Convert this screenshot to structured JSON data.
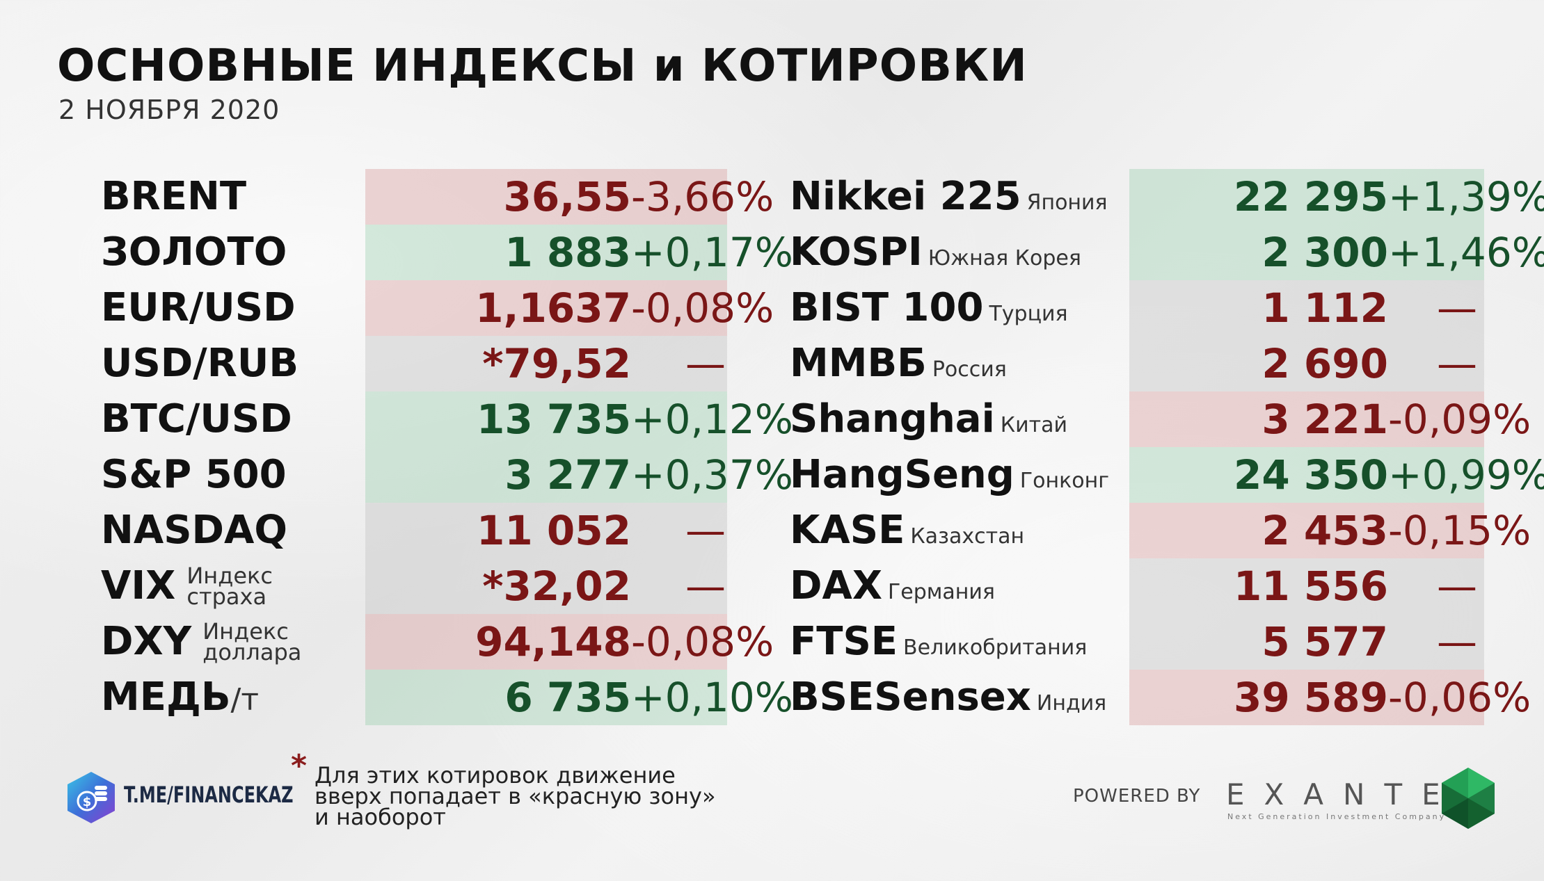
{
  "header": {
    "title": "ОСНОВНЫЕ ИНДЕКСЫ и КОТИРОВКИ",
    "date": "2 НОЯБРЯ 2020"
  },
  "colors": {
    "up_bg": "#cfe3d5",
    "down_bg": "#e6cfcf",
    "flat_bg": "#d6d6d6",
    "up_text": "#16502a",
    "down_text": "#7a1616"
  },
  "left_table": [
    {
      "name": "BRENT",
      "value": "36,55",
      "change": "-3,66%",
      "trend": "down"
    },
    {
      "name": "ЗОЛОТО",
      "value": "1 883",
      "change": "+0,17%",
      "trend": "up"
    },
    {
      "name": "EUR/USD",
      "value": "1,1637",
      "change": "-0,08%",
      "trend": "down"
    },
    {
      "name": "USD/RUB",
      "value": "*79,52",
      "change": "—",
      "trend": "flat"
    },
    {
      "name": "BTC/USD",
      "value": "13 735",
      "change": "+0,12%",
      "trend": "up"
    },
    {
      "name": "S&P 500",
      "value": "3 277",
      "change": "+0,37%",
      "trend": "up"
    },
    {
      "name": "NASDAQ",
      "value": "11 052",
      "change": "—",
      "trend": "flat"
    },
    {
      "name": "VIX",
      "sub1": "Индекс",
      "sub2": "страха",
      "value": "*32,02",
      "change": "—",
      "trend": "flat"
    },
    {
      "name": "DXY",
      "sub1": "Индекс",
      "sub2": "доллара",
      "value": "94,148",
      "change": "-0,08%",
      "trend": "down"
    },
    {
      "name": "МЕДЬ",
      "unit": "/т",
      "value": "6 735",
      "change": "+0,10%",
      "trend": "up"
    }
  ],
  "right_table": [
    {
      "name": "Nikkei 225",
      "country": "Япония",
      "value": "22 295",
      "change": "+1,39%",
      "trend": "up"
    },
    {
      "name": "KOSPI",
      "country": "Южная Корея",
      "value": "2 300",
      "change": "+1,46%",
      "trend": "up"
    },
    {
      "name": "BIST 100",
      "country": "Турция",
      "value": "1 112",
      "change": "—",
      "trend": "flat"
    },
    {
      "name": "ММВБ",
      "country": "Россия",
      "value": "2 690",
      "change": "—",
      "trend": "flat"
    },
    {
      "name": "Shanghai",
      "country": "Китай",
      "value": "3 221",
      "change": "-0,09%",
      "trend": "down"
    },
    {
      "name": "HangSeng",
      "country": "Гонконг",
      "value": "24 350",
      "change": "+0,99%",
      "trend": "up"
    },
    {
      "name": "KASE",
      "country": "Казахстан",
      "value": "2 453",
      "change": "-0,15%",
      "trend": "down"
    },
    {
      "name": "DAX",
      "country": "Германия",
      "value": "11 556",
      "change": "—",
      "trend": "flat"
    },
    {
      "name": "FTSE",
      "country": "Великобритания",
      "value": "5 577",
      "change": "—",
      "trend": "flat"
    },
    {
      "name": "BSESensex",
      "country": "Индия",
      "value": "39 589",
      "change": "-0,06%",
      "trend": "down"
    }
  ],
  "footer": {
    "channel": "T.ME/FINANCEKAZ",
    "footnote_mark": "*",
    "footnote_lines": [
      "Для этих котировок движение",
      "вверх попадает в «красную зону»",
      "и наоборот"
    ],
    "powered_by": "POWERED BY",
    "brand": "EXANTE",
    "brand_tagline": "Next Generation Investment Company"
  }
}
